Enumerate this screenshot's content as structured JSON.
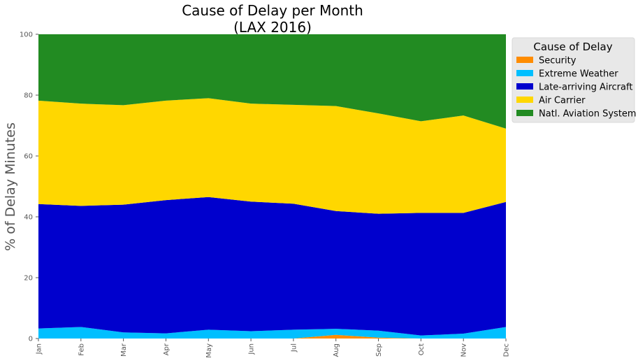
{
  "chart_data": {
    "type": "area",
    "stacked": true,
    "title": "Cause of Delay per Month",
    "subtitle": "(LAX 2016)",
    "xlabel": "",
    "ylabel": "% of Delay Minutes",
    "ylim": [
      0,
      100
    ],
    "yticks": [
      0,
      20,
      40,
      60,
      80,
      100
    ],
    "grid": false,
    "legend": {
      "title": "Cause of Delay",
      "placement": "outside-top-right"
    },
    "categories": [
      "Jan",
      "Feb",
      "Mar",
      "Apr",
      "May",
      "Jun",
      "Jul",
      "Aug",
      "Sep",
      "Oct",
      "Nov",
      "Dec"
    ],
    "series": [
      {
        "name": "Security",
        "color": "#ff8c00",
        "values": [
          0,
          0,
          0,
          0,
          0,
          0,
          0,
          1.2,
          0.3,
          0,
          0,
          0
        ]
      },
      {
        "name": "Extreme Weather",
        "color": "#00bfff",
        "values": [
          3.3,
          3.8,
          2.0,
          1.7,
          2.9,
          2.4,
          2.9,
          2.0,
          2.3,
          1.0,
          1.6,
          3.8
        ]
      },
      {
        "name": "Late-arriving Aircraft",
        "color": "#0000cd",
        "values": [
          40.9,
          39.8,
          42.0,
          43.8,
          43.6,
          42.6,
          41.4,
          38.7,
          38.4,
          40.3,
          39.7,
          41.1
        ]
      },
      {
        "name": "Air Carrier",
        "color": "#ffd700",
        "values": [
          34.0,
          33.6,
          32.7,
          32.7,
          32.5,
          32.2,
          32.5,
          34.5,
          33.0,
          30.1,
          32.0,
          24.1
        ]
      },
      {
        "name": "Natl. Aviation System",
        "color": "#228b22",
        "values": [
          21.8,
          22.8,
          23.3,
          21.8,
          21.0,
          22.8,
          23.2,
          23.6,
          26.0,
          28.6,
          26.7,
          31.0
        ]
      }
    ]
  }
}
